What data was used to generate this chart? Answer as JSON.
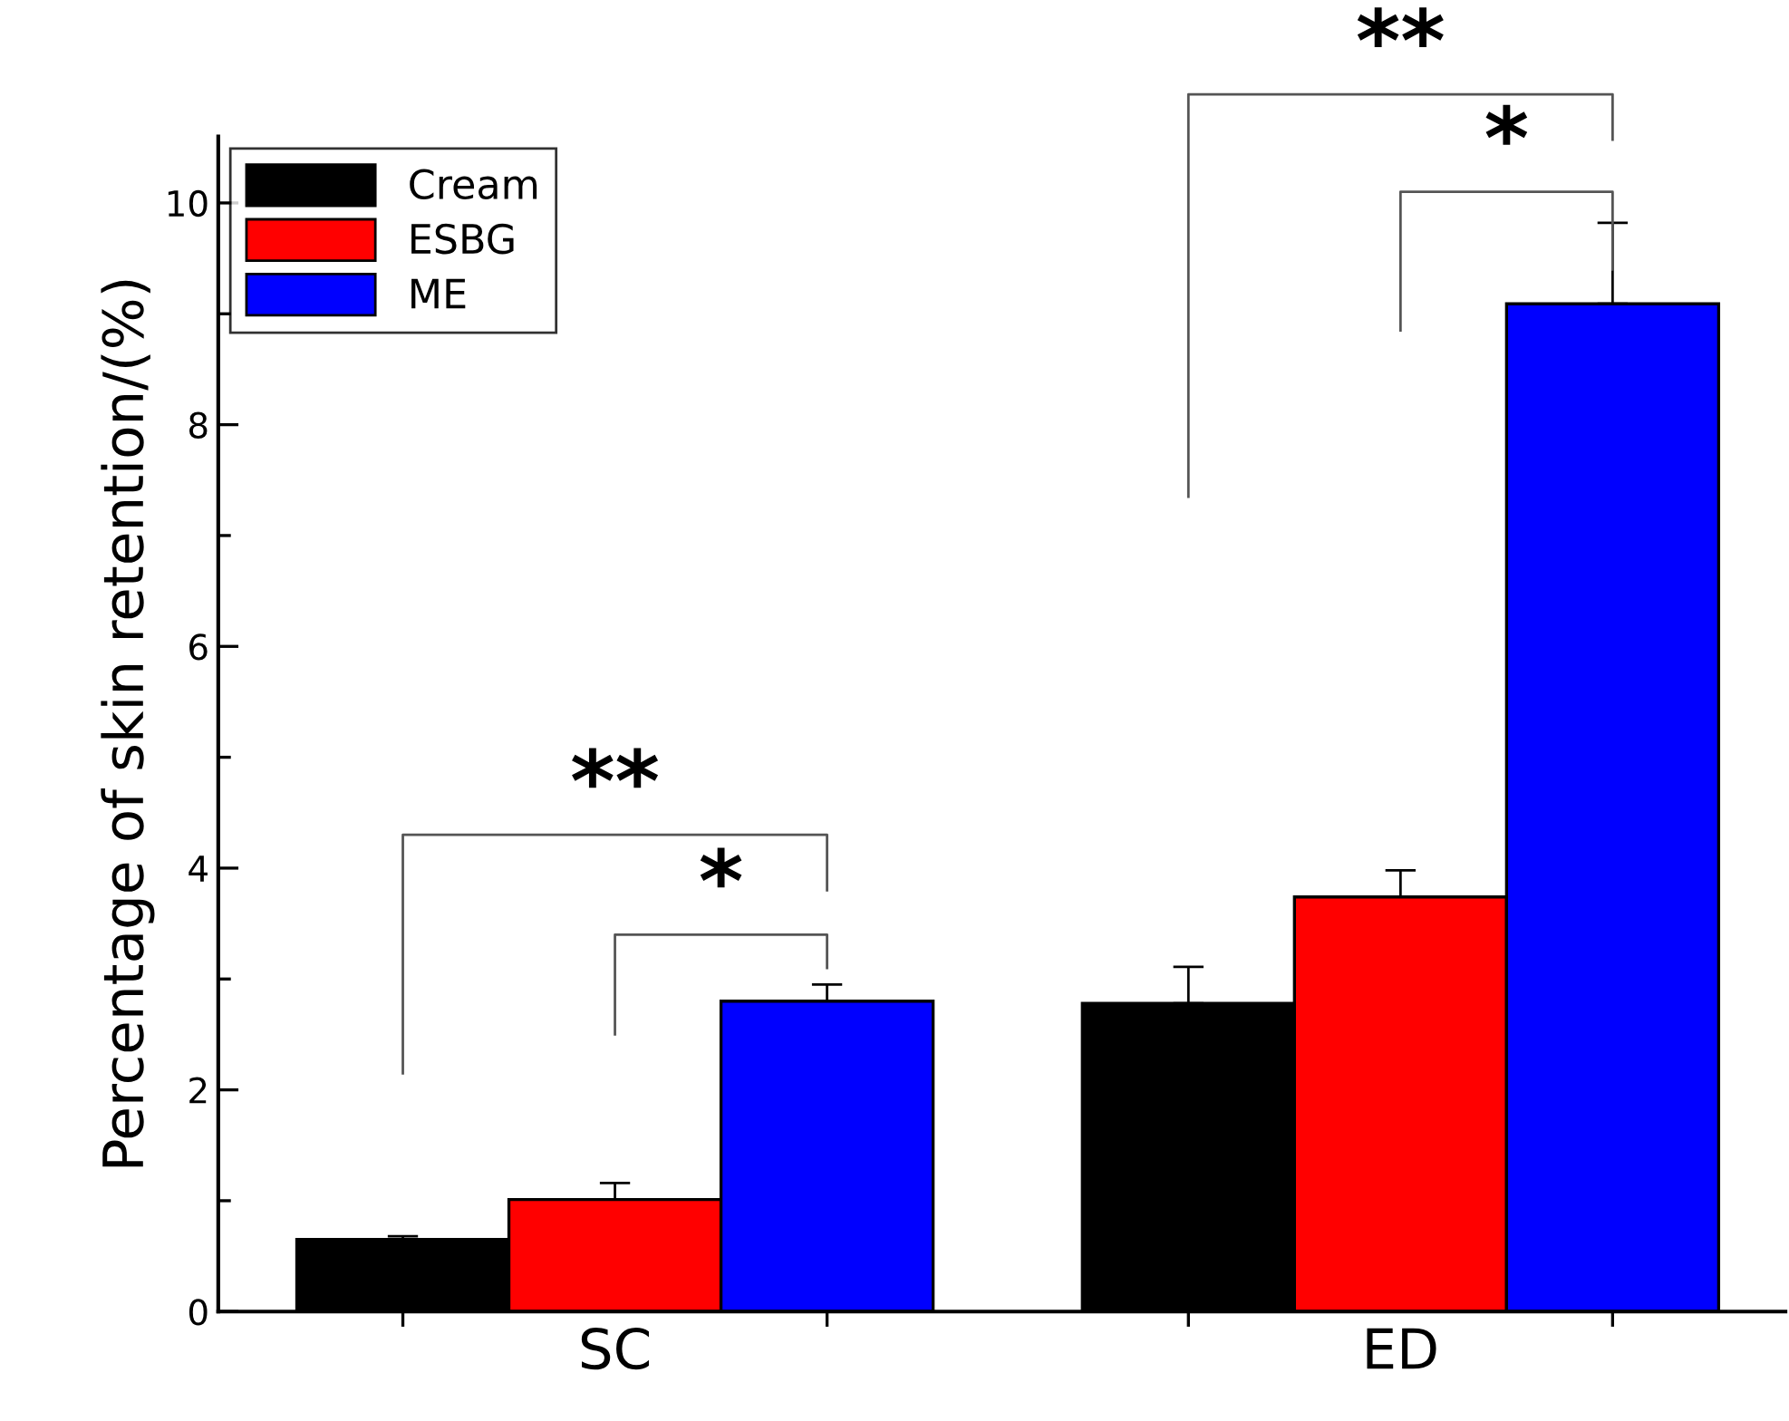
{
  "chart_data": {
    "type": "bar",
    "ylabel": "Percentage of skin retention/(%)",
    "categories": [
      "SC",
      "ED"
    ],
    "series": [
      {
        "name": "Cream",
        "color": "#000000",
        "values": [
          0.65,
          2.78
        ],
        "errors": [
          0.03,
          0.33
        ]
      },
      {
        "name": "ESBG",
        "color": "#ff0000",
        "values": [
          1.01,
          3.74
        ],
        "errors": [
          0.15,
          0.24
        ]
      },
      {
        "name": "ME",
        "color": "#0000ff",
        "values": [
          2.8,
          9.09
        ],
        "errors": [
          0.15,
          0.73
        ]
      }
    ],
    "ylim": [
      0,
      10.6
    ],
    "yticks": [
      0,
      2,
      4,
      6,
      8,
      10
    ],
    "grid": false,
    "legend": "top left",
    "annotations": [
      "**",
      "*",
      "**",
      "*"
    ]
  }
}
